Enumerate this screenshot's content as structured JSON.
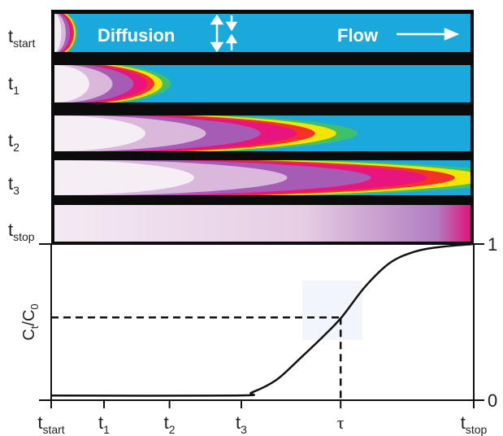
{
  "chart_data": {
    "type": "line",
    "annotations": [
      "Diffusion",
      "Flow"
    ],
    "panels": [
      {
        "label": "t",
        "sub": "start"
      },
      {
        "label": "t",
        "sub": "1"
      },
      {
        "label": "t",
        "sub": "2"
      },
      {
        "label": "t",
        "sub": "3"
      },
      {
        "label": "t",
        "sub": "stop"
      }
    ],
    "ylabel": [
      "C",
      "t",
      "/C",
      "0"
    ],
    "xlim": [
      0,
      100
    ],
    "ylim": [
      0,
      1
    ],
    "yticks": [
      0,
      1
    ],
    "xticks": [
      {
        "value": 0,
        "label": "t",
        "sub": "start"
      },
      {
        "value": 12.5,
        "label": "t",
        "sub": "1"
      },
      {
        "value": 28,
        "label": "t",
        "sub": "2"
      },
      {
        "value": 45,
        "label": "t",
        "sub": "3"
      },
      {
        "value": 68.5,
        "label": "τ"
      },
      {
        "value": 100,
        "label": "t",
        "sub": "stop"
      }
    ],
    "series": [
      {
        "color": "#111111",
        "x": [
          0,
          43.7,
          47.5,
          53.3,
          59,
          64.8,
          68.7,
          74.4,
          80.2,
          85.9,
          91.7,
          100
        ],
        "values": [
          0.03,
          0.03,
          0.05,
          0.13,
          0.27,
          0.42,
          0.53,
          0.73,
          0.88,
          0.95,
          0.98,
          1.0
        ]
      }
    ],
    "tau_point": {
      "x": 68.5,
      "y": 0.53
    }
  }
}
